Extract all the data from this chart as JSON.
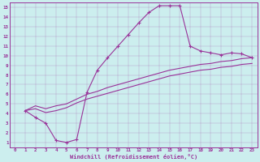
{
  "xlabel": "Windchill (Refroidissement éolien,°C)",
  "bg_color": "#cceeee",
  "line_color": "#993399",
  "xlim": [
    -0.5,
    23.5
  ],
  "ylim": [
    0.5,
    15.5
  ],
  "xticks": [
    0,
    1,
    2,
    3,
    4,
    5,
    6,
    7,
    8,
    9,
    10,
    11,
    12,
    13,
    14,
    15,
    16,
    17,
    18,
    19,
    20,
    21,
    22,
    23
  ],
  "yticks": [
    1,
    2,
    3,
    4,
    5,
    6,
    7,
    8,
    9,
    10,
    11,
    12,
    13,
    14,
    15
  ],
  "series1_x": [
    1,
    2,
    3,
    4,
    5,
    6,
    7,
    8,
    9,
    10,
    11,
    12,
    13,
    14,
    15,
    16,
    17,
    18,
    19,
    20,
    21,
    22,
    23
  ],
  "series1_y": [
    4.3,
    3.6,
    3.0,
    1.2,
    1.0,
    1.3,
    6.2,
    8.5,
    9.8,
    11.0,
    12.2,
    13.4,
    14.5,
    15.2,
    15.2,
    15.2,
    11.0,
    10.5,
    10.3,
    10.1,
    10.3,
    10.2,
    9.8
  ],
  "series2_x": [
    1,
    2,
    3,
    4,
    5,
    6,
    7,
    8,
    9,
    10,
    11,
    12,
    13,
    14,
    15,
    16,
    17,
    18,
    19,
    20,
    21,
    22,
    23
  ],
  "series2_y": [
    4.3,
    4.8,
    4.5,
    4.8,
    5.0,
    5.5,
    6.0,
    6.3,
    6.7,
    7.0,
    7.3,
    7.6,
    7.9,
    8.2,
    8.5,
    8.7,
    8.9,
    9.1,
    9.2,
    9.4,
    9.5,
    9.7,
    9.8
  ],
  "series3_x": [
    1,
    2,
    3,
    4,
    5,
    6,
    7,
    8,
    9,
    10,
    11,
    12,
    13,
    14,
    15,
    16,
    17,
    18,
    19,
    20,
    21,
    22,
    23
  ],
  "series3_y": [
    4.3,
    4.5,
    4.1,
    4.3,
    4.6,
    5.1,
    5.5,
    5.8,
    6.1,
    6.4,
    6.7,
    7.0,
    7.3,
    7.6,
    7.9,
    8.1,
    8.3,
    8.5,
    8.6,
    8.8,
    8.9,
    9.1,
    9.2
  ]
}
